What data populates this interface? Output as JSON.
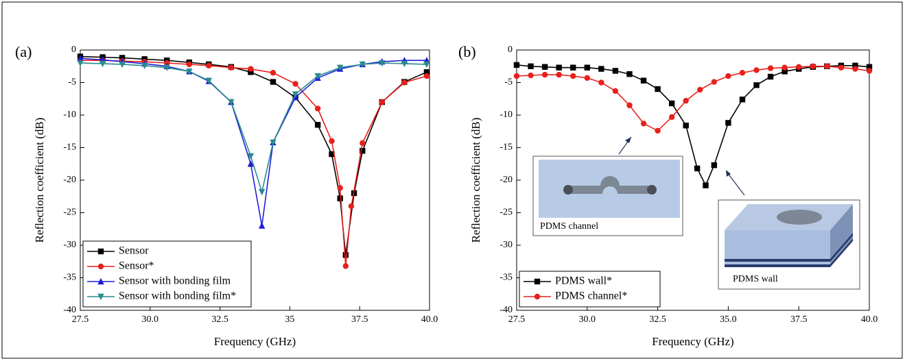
{
  "chart_data": [
    {
      "type": "line",
      "label": "(a)",
      "x_label": "Frequency (GHz)",
      "y_label": "Reflection coefficient (dB)",
      "xlim": [
        27.5,
        40.0
      ],
      "ylim": [
        -40,
        0
      ],
      "xticks": [
        27.5,
        {
          "value": 30.0,
          "label": "30.0"
        },
        32.5,
        35,
        {
          "value": 35.0,
          "label": "35.0"
        },
        37.5,
        {
          "value": 40.0,
          "label": "40.0"
        }
      ],
      "yticks": [
        -40,
        -35,
        -30,
        -25,
        -20,
        -15,
        -10,
        -5,
        0
      ],
      "legend": "lower left",
      "series": [
        {
          "name": "Sensor",
          "color": "#000000",
          "marker": "square",
          "x": [
            27.5,
            28.3,
            29.0,
            29.8,
            30.6,
            31.4,
            32.1,
            32.9,
            33.6,
            34.4,
            35.2,
            36.0,
            36.5,
            36.8,
            37.0,
            37.3,
            37.6,
            38.3,
            39.1,
            39.9
          ],
          "values": [
            -1.0,
            -1.1,
            -1.2,
            -1.4,
            -1.6,
            -1.9,
            -2.2,
            -2.6,
            -3.4,
            -4.9,
            -7.3,
            -11.5,
            -16,
            -22.8,
            -31.5,
            -22,
            -15.5,
            -8.0,
            -4.9,
            -3.4
          ]
        },
        {
          "name": "Sensor*",
          "color": "#e8201c",
          "marker": "circle",
          "x": [
            27.5,
            28.3,
            29.0,
            29.8,
            30.6,
            31.4,
            32.1,
            32.9,
            33.6,
            34.4,
            35.2,
            36.0,
            36.5,
            36.8,
            37.0,
            37.2,
            37.6,
            38.3,
            39.1,
            39.9
          ],
          "values": [
            -1.6,
            -1.6,
            -1.7,
            -1.8,
            -2.0,
            -2.2,
            -2.4,
            -2.7,
            -2.9,
            -3.5,
            -5.2,
            -9.0,
            -14,
            -21.2,
            -33.2,
            -24,
            -14.3,
            -8.0,
            -5.0,
            -4.0
          ]
        },
        {
          "name": "Sensor with bonding film",
          "color": "#1d1dd8",
          "marker": "triangle-up",
          "x": [
            27.5,
            28.3,
            29.0,
            29.8,
            30.6,
            31.4,
            32.1,
            32.9,
            33.6,
            34.0,
            34.4,
            35.2,
            36.0,
            36.8,
            37.6,
            38.3,
            39.1,
            39.9
          ],
          "values": [
            -1.3,
            -1.5,
            -1.8,
            -2.1,
            -2.5,
            -3.3,
            -4.8,
            -8.0,
            -17.5,
            -27.0,
            -14.2,
            -7.3,
            -4.3,
            -2.9,
            -2.2,
            -1.8,
            -1.6,
            -1.6
          ]
        },
        {
          "name": "Sensor with bonding film*",
          "color": "#2a8c8c",
          "marker": "triangle-down",
          "x": [
            27.5,
            28.3,
            29.0,
            29.8,
            30.6,
            31.4,
            32.1,
            32.9,
            33.6,
            34.0,
            34.4,
            35.2,
            36.0,
            36.8,
            37.6,
            38.3,
            39.1,
            39.9
          ],
          "values": [
            -2.0,
            -2.1,
            -2.2,
            -2.4,
            -2.7,
            -3.3,
            -4.7,
            -8.0,
            -16.3,
            -21.8,
            -14.2,
            -6.8,
            -4.0,
            -2.7,
            -2.2,
            -2.0,
            -2.1,
            -2.2
          ]
        }
      ]
    },
    {
      "type": "line",
      "label": "(b)",
      "x_label": "Frequency (GHz)",
      "y_label": "Reflection coefficient (dB)",
      "xlim": [
        27.5,
        40.0
      ],
      "ylim": [
        -40,
        0
      ],
      "xticks": [
        27.5,
        {
          "value": 30.0,
          "label": "30.0"
        },
        32.5,
        {
          "value": 35.0,
          "label": "35.0"
        },
        37.5,
        {
          "value": 40.0,
          "label": "40.0"
        }
      ],
      "yticks": [
        -40,
        -35,
        -30,
        -25,
        -20,
        -15,
        -10,
        -5,
        0
      ],
      "legend": "lower left",
      "annotations": [
        {
          "text": "PDMS channel"
        },
        {
          "text": "PDMS wall"
        }
      ],
      "series": [
        {
          "name": "PDMS wall*",
          "color": "#000000",
          "marker": "square",
          "x": [
            27.5,
            28.0,
            28.5,
            29.0,
            29.5,
            30.0,
            30.5,
            31.0,
            31.5,
            32.0,
            32.5,
            33.0,
            33.5,
            33.9,
            34.2,
            34.5,
            35.0,
            35.5,
            36.0,
            36.5,
            37.0,
            37.5,
            38.0,
            38.5,
            39.0,
            39.5,
            40.0
          ],
          "values": [
            -2.3,
            -2.5,
            -2.6,
            -2.7,
            -2.7,
            -2.7,
            -2.9,
            -3.2,
            -3.7,
            -4.7,
            -6.0,
            -8.2,
            -11.6,
            -18.2,
            -20.8,
            -17.7,
            -11.2,
            -7.6,
            -5.4,
            -4.1,
            -3.3,
            -2.9,
            -2.6,
            -2.5,
            -2.4,
            -2.4,
            -2.6
          ]
        },
        {
          "name": "PDMS channel*",
          "color": "#e8201c",
          "marker": "circle",
          "x": [
            27.5,
            28.0,
            28.5,
            29.0,
            29.5,
            30.0,
            30.5,
            31.0,
            31.5,
            32.0,
            32.5,
            33.0,
            33.5,
            34.0,
            34.5,
            35.0,
            35.5,
            36.0,
            36.5,
            37.0,
            37.5,
            38.0,
            38.5,
            39.0,
            39.5,
            40.0
          ],
          "values": [
            -4.0,
            -3.9,
            -3.8,
            -3.8,
            -4.0,
            -4.3,
            -5.0,
            -6.3,
            -8.5,
            -11.3,
            -12.4,
            -10.3,
            -7.8,
            -6.1,
            -4.9,
            -4.0,
            -3.5,
            -3.1,
            -2.8,
            -2.7,
            -2.6,
            -2.5,
            -2.5,
            -2.7,
            -2.9,
            -3.2
          ]
        }
      ]
    }
  ]
}
